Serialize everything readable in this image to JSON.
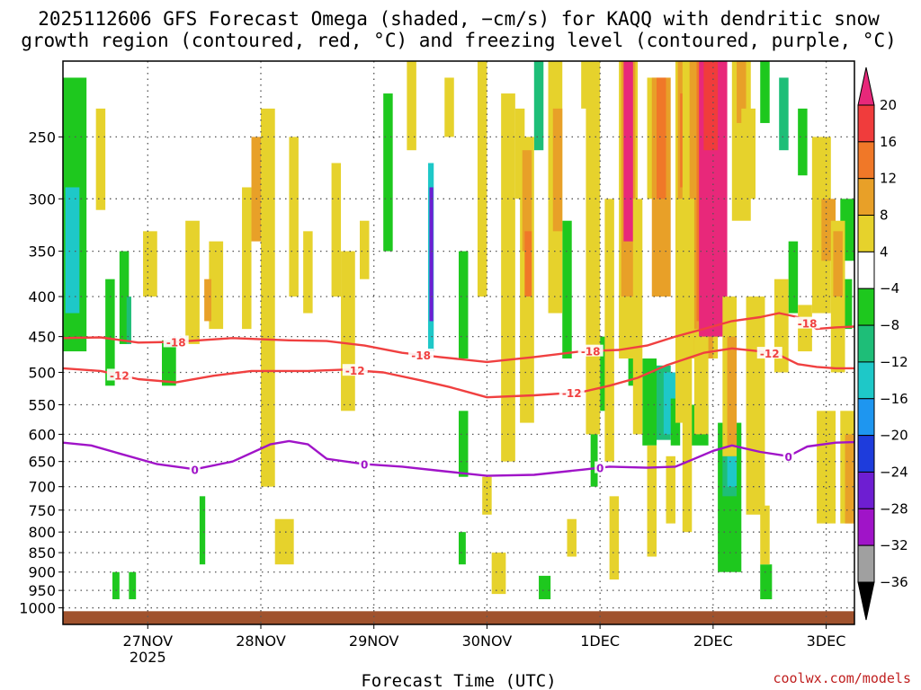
{
  "chart_data": {
    "type": "heatmap",
    "title_line1": "2025112606 GFS Forecast Omega (shaded, −cm/s) for KAQQ with dendritic snow",
    "title_line2": "growth region (contoured, red, °C) and freezing level (contoured, purple, °C)",
    "xlabel": "Forecast Time (UTC)",
    "credit": "coolwx.com/models",
    "x_range_hours": [
      0,
      168
    ],
    "y_range_hpa": [
      1050,
      200
    ],
    "x_ticks": [
      {
        "label": "27NOV",
        "hour": 18,
        "sub": "2025"
      },
      {
        "label": "28NOV",
        "hour": 42,
        "sub": ""
      },
      {
        "label": "29NOV",
        "hour": 66,
        "sub": ""
      },
      {
        "label": "30NOV",
        "hour": 90,
        "sub": ""
      },
      {
        "label": "1DEC",
        "hour": 114,
        "sub": ""
      },
      {
        "label": "2DEC",
        "hour": 138,
        "sub": ""
      },
      {
        "label": "3DEC",
        "hour": 162,
        "sub": ""
      }
    ],
    "y_ticks": [
      {
        "label": "250",
        "p": 250
      },
      {
        "label": "300",
        "p": 300
      },
      {
        "label": "350",
        "p": 350
      },
      {
        "label": "400",
        "p": 400
      },
      {
        "label": "450",
        "p": 450
      },
      {
        "label": "500",
        "p": 500
      },
      {
        "label": "550",
        "p": 550
      },
      {
        "label": "600",
        "p": 600
      },
      {
        "label": "650",
        "p": 650
      },
      {
        "label": "700",
        "p": 700
      },
      {
        "label": "750",
        "p": 750
      },
      {
        "label": "800",
        "p": 800
      },
      {
        "label": "850",
        "p": 850
      },
      {
        "label": "900",
        "p": 900
      },
      {
        "label": "950",
        "p": 950
      },
      {
        "label": "1000",
        "p": 1000
      }
    ],
    "colorbar": {
      "bins": [
        {
          "from": 20,
          "to": 24,
          "color": "#e8287a"
        },
        {
          "from": 16,
          "to": 20,
          "color": "#f03c3c"
        },
        {
          "from": 12,
          "to": 16,
          "color": "#f07828"
        },
        {
          "from": 8,
          "to": 12,
          "color": "#e8a028"
        },
        {
          "from": 4,
          "to": 8,
          "color": "#e6d22c"
        },
        {
          "from": -4,
          "to": 4,
          "color": "#ffffff"
        },
        {
          "from": -8,
          "to": -4,
          "color": "#1ec81e"
        },
        {
          "from": -12,
          "to": -8,
          "color": "#1ebe78"
        },
        {
          "from": -16,
          "to": -12,
          "color": "#1ec8c8"
        },
        {
          "from": -20,
          "to": -16,
          "color": "#1e96f0"
        },
        {
          "from": -24,
          "to": -20,
          "color": "#1e3cdc"
        },
        {
          "from": -28,
          "to": -24,
          "color": "#6e1ed2"
        },
        {
          "from": -32,
          "to": -28,
          "color": "#a014c8"
        },
        {
          "from": -36,
          "to": -32,
          "color": "#a0a0a0"
        },
        {
          "from": -40,
          "to": -36,
          "color": "#000000"
        }
      ],
      "labels": [
        "20",
        "16",
        "12",
        "8",
        "4",
        "−4",
        "−8",
        "−12",
        "−16",
        "−20",
        "−24",
        "−28",
        "−32",
        "−36"
      ]
    },
    "ground_color": "#a0522d",
    "contours": [
      {
        "name": "minus-18",
        "label": "-18",
        "color": "#f04040",
        "points": [
          [
            0,
            452
          ],
          [
            8,
            451
          ],
          [
            16,
            458
          ],
          [
            24,
            457
          ],
          [
            36,
            452
          ],
          [
            48,
            455
          ],
          [
            56,
            456
          ],
          [
            64,
            462
          ],
          [
            72,
            472
          ],
          [
            80,
            478
          ],
          [
            90,
            485
          ],
          [
            100,
            478
          ],
          [
            110,
            470
          ],
          [
            118,
            468
          ],
          [
            124,
            462
          ],
          [
            130,
            450
          ],
          [
            136,
            440
          ],
          [
            142,
            430
          ],
          [
            148,
            425
          ],
          [
            152,
            420
          ],
          [
            156,
            425
          ],
          [
            160,
            440
          ],
          [
            164,
            438
          ],
          [
            168,
            437
          ]
        ],
        "labels_at": [
          24,
          76,
          112,
          158
        ]
      },
      {
        "name": "minus-12",
        "label": "-12",
        "color": "#f04040",
        "points": [
          [
            0,
            494
          ],
          [
            8,
            498
          ],
          [
            16,
            510
          ],
          [
            24,
            515
          ],
          [
            32,
            505
          ],
          [
            40,
            498
          ],
          [
            52,
            498
          ],
          [
            60,
            496
          ],
          [
            68,
            500
          ],
          [
            76,
            512
          ],
          [
            82,
            522
          ],
          [
            90,
            538
          ],
          [
            100,
            535
          ],
          [
            110,
            530
          ],
          [
            116,
            520
          ],
          [
            122,
            508
          ],
          [
            128,
            490
          ],
          [
            136,
            472
          ],
          [
            142,
            466
          ],
          [
            148,
            470
          ],
          [
            152,
            475
          ],
          [
            156,
            488
          ],
          [
            160,
            492
          ],
          [
            164,
            494
          ],
          [
            168,
            494
          ]
        ],
        "labels_at": [
          12,
          62,
          108,
          150
        ]
      },
      {
        "name": "freezing-level",
        "label": "0",
        "color": "#a014c8",
        "points": [
          [
            0,
            615
          ],
          [
            6,
            620
          ],
          [
            12,
            635
          ],
          [
            20,
            655
          ],
          [
            28,
            665
          ],
          [
            36,
            650
          ],
          [
            44,
            618
          ],
          [
            48,
            612
          ],
          [
            52,
            618
          ],
          [
            56,
            645
          ],
          [
            64,
            655
          ],
          [
            72,
            660
          ],
          [
            80,
            668
          ],
          [
            90,
            678
          ],
          [
            100,
            676
          ],
          [
            110,
            666
          ],
          [
            116,
            660
          ],
          [
            124,
            662
          ],
          [
            130,
            660
          ],
          [
            134,
            645
          ],
          [
            138,
            630
          ],
          [
            142,
            620
          ],
          [
            148,
            632
          ],
          [
            154,
            640
          ],
          [
            158,
            622
          ],
          [
            164,
            615
          ],
          [
            168,
            614
          ]
        ],
        "labels_at": [
          28,
          64,
          114,
          154
        ]
      }
    ],
    "shaded_regions": [
      {
        "x": 0,
        "p0": 210,
        "w": 5,
        "p1": 470,
        "v": -6
      },
      {
        "x": 0.5,
        "p0": 290,
        "w": 3,
        "p1": 420,
        "v": -14
      },
      {
        "x": 9,
        "p0": 380,
        "w": 2,
        "p1": 520,
        "v": -6
      },
      {
        "x": 12,
        "p0": 350,
        "w": 2,
        "p1": 460,
        "v": -6
      },
      {
        "x": 13.5,
        "p0": 400,
        "w": 1,
        "p1": 460,
        "v": -10
      },
      {
        "x": 21,
        "p0": 455,
        "w": 3,
        "p1": 520,
        "v": -6
      },
      {
        "x": 10.5,
        "p0": 900,
        "w": 1.5,
        "p1": 975,
        "v": -6
      },
      {
        "x": 14,
        "p0": 900,
        "w": 1.5,
        "p1": 975,
        "v": -6
      },
      {
        "x": 29,
        "p0": 720,
        "w": 1.2,
        "p1": 880,
        "v": -6
      },
      {
        "x": 68,
        "p0": 220,
        "w": 2,
        "p1": 350,
        "v": -6
      },
      {
        "x": 77.5,
        "p0": 270,
        "w": 1.2,
        "p1": 470,
        "v": -14
      },
      {
        "x": 77.8,
        "p0": 290,
        "w": 0.8,
        "p1": 430,
        "v": -26
      },
      {
        "x": 84,
        "p0": 350,
        "w": 2,
        "p1": 480,
        "v": -6
      },
      {
        "x": 84,
        "p0": 560,
        "w": 2,
        "p1": 680,
        "v": -6
      },
      {
        "x": 84,
        "p0": 800,
        "w": 1.5,
        "p1": 880,
        "v": -6
      },
      {
        "x": 100,
        "p0": 200,
        "w": 2,
        "p1": 260,
        "v": -10
      },
      {
        "x": 101,
        "p0": 910,
        "w": 2.5,
        "p1": 975,
        "v": -6
      },
      {
        "x": 106,
        "p0": 320,
        "w": 2,
        "p1": 480,
        "v": -6
      },
      {
        "x": 112,
        "p0": 530,
        "w": 1.5,
        "p1": 700,
        "v": -6
      },
      {
        "x": 114,
        "p0": 450,
        "w": 2,
        "p1": 560,
        "v": -6
      },
      {
        "x": 120,
        "p0": 450,
        "w": 2,
        "p1": 520,
        "v": -6
      },
      {
        "x": 123,
        "p0": 480,
        "w": 3,
        "p1": 620,
        "v": -6
      },
      {
        "x": 126,
        "p0": 490,
        "w": 3,
        "p1": 610,
        "v": -10
      },
      {
        "x": 127.5,
        "p0": 500,
        "w": 2.5,
        "p1": 600,
        "v": -14
      },
      {
        "x": 129,
        "p0": 540,
        "w": 2,
        "p1": 620,
        "v": -6
      },
      {
        "x": 132,
        "p0": 550,
        "w": 5,
        "p1": 620,
        "v": -6
      },
      {
        "x": 139,
        "p0": 580,
        "w": 5,
        "p1": 900,
        "v": -6
      },
      {
        "x": 140,
        "p0": 630,
        "w": 3,
        "p1": 720,
        "v": -10
      },
      {
        "x": 141,
        "p0": 640,
        "w": 2,
        "p1": 700,
        "v": -14
      },
      {
        "x": 148,
        "p0": 880,
        "w": 2.5,
        "p1": 975,
        "v": -6
      },
      {
        "x": 148,
        "p0": 200,
        "w": 2,
        "p1": 240,
        "v": -6
      },
      {
        "x": 152,
        "p0": 210,
        "w": 2,
        "p1": 260,
        "v": -10
      },
      {
        "x": 156,
        "p0": 230,
        "w": 2,
        "p1": 280,
        "v": -6
      },
      {
        "x": 154,
        "p0": 340,
        "w": 2,
        "p1": 420,
        "v": -6
      },
      {
        "x": 164.5,
        "p0": 380,
        "w": 3,
        "p1": 440,
        "v": -6
      },
      {
        "x": 165,
        "p0": 300,
        "w": 3,
        "p1": 360,
        "v": -6
      },
      {
        "x": 7,
        "p0": 230,
        "w": 2,
        "p1": 310,
        "v": 5
      },
      {
        "x": 17,
        "p0": 330,
        "w": 3,
        "p1": 400,
        "v": 5
      },
      {
        "x": 26,
        "p0": 320,
        "w": 3,
        "p1": 460,
        "v": 5
      },
      {
        "x": 31,
        "p0": 340,
        "w": 3,
        "p1": 440,
        "v": 5
      },
      {
        "x": 30,
        "p0": 380,
        "w": 1.5,
        "p1": 430,
        "v": 10
      },
      {
        "x": 38,
        "p0": 290,
        "w": 2,
        "p1": 440,
        "v": 5
      },
      {
        "x": 42,
        "p0": 230,
        "w": 3,
        "p1": 700,
        "v": 5
      },
      {
        "x": 40,
        "p0": 250,
        "w": 2,
        "p1": 340,
        "v": 10
      },
      {
        "x": 48,
        "p0": 250,
        "w": 2,
        "p1": 400,
        "v": 5
      },
      {
        "x": 51,
        "p0": 330,
        "w": 2,
        "p1": 420,
        "v": 5
      },
      {
        "x": 45,
        "p0": 770,
        "w": 4,
        "p1": 880,
        "v": 5
      },
      {
        "x": 57,
        "p0": 270,
        "w": 2,
        "p1": 400,
        "v": 5
      },
      {
        "x": 59,
        "p0": 350,
        "w": 3,
        "p1": 560,
        "v": 5
      },
      {
        "x": 63,
        "p0": 320,
        "w": 2,
        "p1": 380,
        "v": 5
      },
      {
        "x": 73,
        "p0": 200,
        "w": 2,
        "p1": 260,
        "v": 5
      },
      {
        "x": 81,
        "p0": 210,
        "w": 2,
        "p1": 250,
        "v": 5
      },
      {
        "x": 88,
        "p0": 200,
        "w": 2,
        "p1": 400,
        "v": 5
      },
      {
        "x": 89,
        "p0": 680,
        "w": 2,
        "p1": 760,
        "v": 5
      },
      {
        "x": 91,
        "p0": 850,
        "w": 3,
        "p1": 960,
        "v": 5
      },
      {
        "x": 93,
        "p0": 220,
        "w": 3,
        "p1": 650,
        "v": 5
      },
      {
        "x": 96,
        "p0": 230,
        "w": 2,
        "p1": 300,
        "v": 5
      },
      {
        "x": 97,
        "p0": 250,
        "w": 3,
        "p1": 580,
        "v": 5
      },
      {
        "x": 97.5,
        "p0": 260,
        "w": 2,
        "p1": 350,
        "v": 10
      },
      {
        "x": 98,
        "p0": 330,
        "w": 1.5,
        "p1": 400,
        "v": 14
      },
      {
        "x": 103,
        "p0": 200,
        "w": 3,
        "p1": 420,
        "v": 5
      },
      {
        "x": 104,
        "p0": 230,
        "w": 2,
        "p1": 330,
        "v": 10
      },
      {
        "x": 107,
        "p0": 770,
        "w": 2,
        "p1": 860,
        "v": 5
      },
      {
        "x": 110,
        "p0": 200,
        "w": 3,
        "p1": 230,
        "v": 5
      },
      {
        "x": 111,
        "p0": 200,
        "w": 3,
        "p1": 600,
        "v": 5
      },
      {
        "x": 115,
        "p0": 300,
        "w": 2,
        "p1": 650,
        "v": 5
      },
      {
        "x": 116,
        "p0": 720,
        "w": 2,
        "p1": 920,
        "v": 5
      },
      {
        "x": 118,
        "p0": 200,
        "w": 4,
        "p1": 480,
        "v": 5
      },
      {
        "x": 118.5,
        "p0": 200,
        "w": 3,
        "p1": 400,
        "v": 10
      },
      {
        "x": 119,
        "p0": 200,
        "w": 2,
        "p1": 340,
        "v": 22
      },
      {
        "x": 121,
        "p0": 300,
        "w": 2,
        "p1": 600,
        "v": 5
      },
      {
        "x": 124,
        "p0": 210,
        "w": 2,
        "p1": 300,
        "v": 5
      },
      {
        "x": 124,
        "p0": 620,
        "w": 2,
        "p1": 860,
        "v": 5
      },
      {
        "x": 125,
        "p0": 210,
        "w": 4,
        "p1": 400,
        "v": 10
      },
      {
        "x": 126,
        "p0": 210,
        "w": 2,
        "p1": 300,
        "v": 14
      },
      {
        "x": 128,
        "p0": 640,
        "w": 2,
        "p1": 780,
        "v": 5
      },
      {
        "x": 130,
        "p0": 200,
        "w": 3,
        "p1": 580,
        "v": 5
      },
      {
        "x": 130.5,
        "p0": 200,
        "w": 2,
        "p1": 300,
        "v": 10
      },
      {
        "x": 131,
        "p0": 220,
        "w": 2,
        "p1": 290,
        "v": 14
      },
      {
        "x": 131.5,
        "p0": 200,
        "w": 2,
        "p1": 800,
        "v": 5
      },
      {
        "x": 133,
        "p0": 200,
        "w": 6,
        "p1": 480,
        "v": 5
      },
      {
        "x": 133,
        "p0": 200,
        "w": 3,
        "p1": 300,
        "v": 10
      },
      {
        "x": 134,
        "p0": 260,
        "w": 4,
        "p1": 480,
        "v": 10
      },
      {
        "x": 134.5,
        "p0": 200,
        "w": 3,
        "p1": 430,
        "v": 14
      },
      {
        "x": 134,
        "p0": 440,
        "w": 3,
        "p1": 600,
        "v": 5
      },
      {
        "x": 135,
        "p0": 200,
        "w": 6,
        "p1": 450,
        "v": 22
      },
      {
        "x": 136,
        "p0": 200,
        "w": 3,
        "p1": 260,
        "v": 18
      },
      {
        "x": 140,
        "p0": 400,
        "w": 3,
        "p1": 640,
        "v": 5
      },
      {
        "x": 141,
        "p0": 450,
        "w": 2,
        "p1": 620,
        "v": 10
      },
      {
        "x": 142,
        "p0": 200,
        "w": 4,
        "p1": 320,
        "v": 5
      },
      {
        "x": 143,
        "p0": 200,
        "w": 2,
        "p1": 240,
        "v": 10
      },
      {
        "x": 144,
        "p0": 230,
        "w": 3,
        "p1": 300,
        "v": 5
      },
      {
        "x": 145,
        "p0": 400,
        "w": 4,
        "p1": 760,
        "v": 5
      },
      {
        "x": 148,
        "p0": 740,
        "w": 2,
        "p1": 880,
        "v": 5
      },
      {
        "x": 151,
        "p0": 380,
        "w": 3,
        "p1": 500,
        "v": 5
      },
      {
        "x": 156,
        "p0": 410,
        "w": 3,
        "p1": 470,
        "v": 5
      },
      {
        "x": 159,
        "p0": 250,
        "w": 4,
        "p1": 420,
        "v": 5
      },
      {
        "x": 160,
        "p0": 560,
        "w": 4,
        "p1": 780,
        "v": 5
      },
      {
        "x": 161,
        "p0": 300,
        "w": 3,
        "p1": 360,
        "v": 10
      },
      {
        "x": 163,
        "p0": 320,
        "w": 3,
        "p1": 500,
        "v": 5
      },
      {
        "x": 163.5,
        "p0": 330,
        "w": 2,
        "p1": 400,
        "v": 10
      },
      {
        "x": 165,
        "p0": 560,
        "w": 3,
        "p1": 780,
        "v": 5
      },
      {
        "x": 166,
        "p0": 600,
        "w": 2,
        "p1": 780,
        "v": 10
      },
      {
        "x": 168,
        "p0": 200,
        "w": 1.5,
        "p1": 300,
        "v": 5
      }
    ]
  }
}
